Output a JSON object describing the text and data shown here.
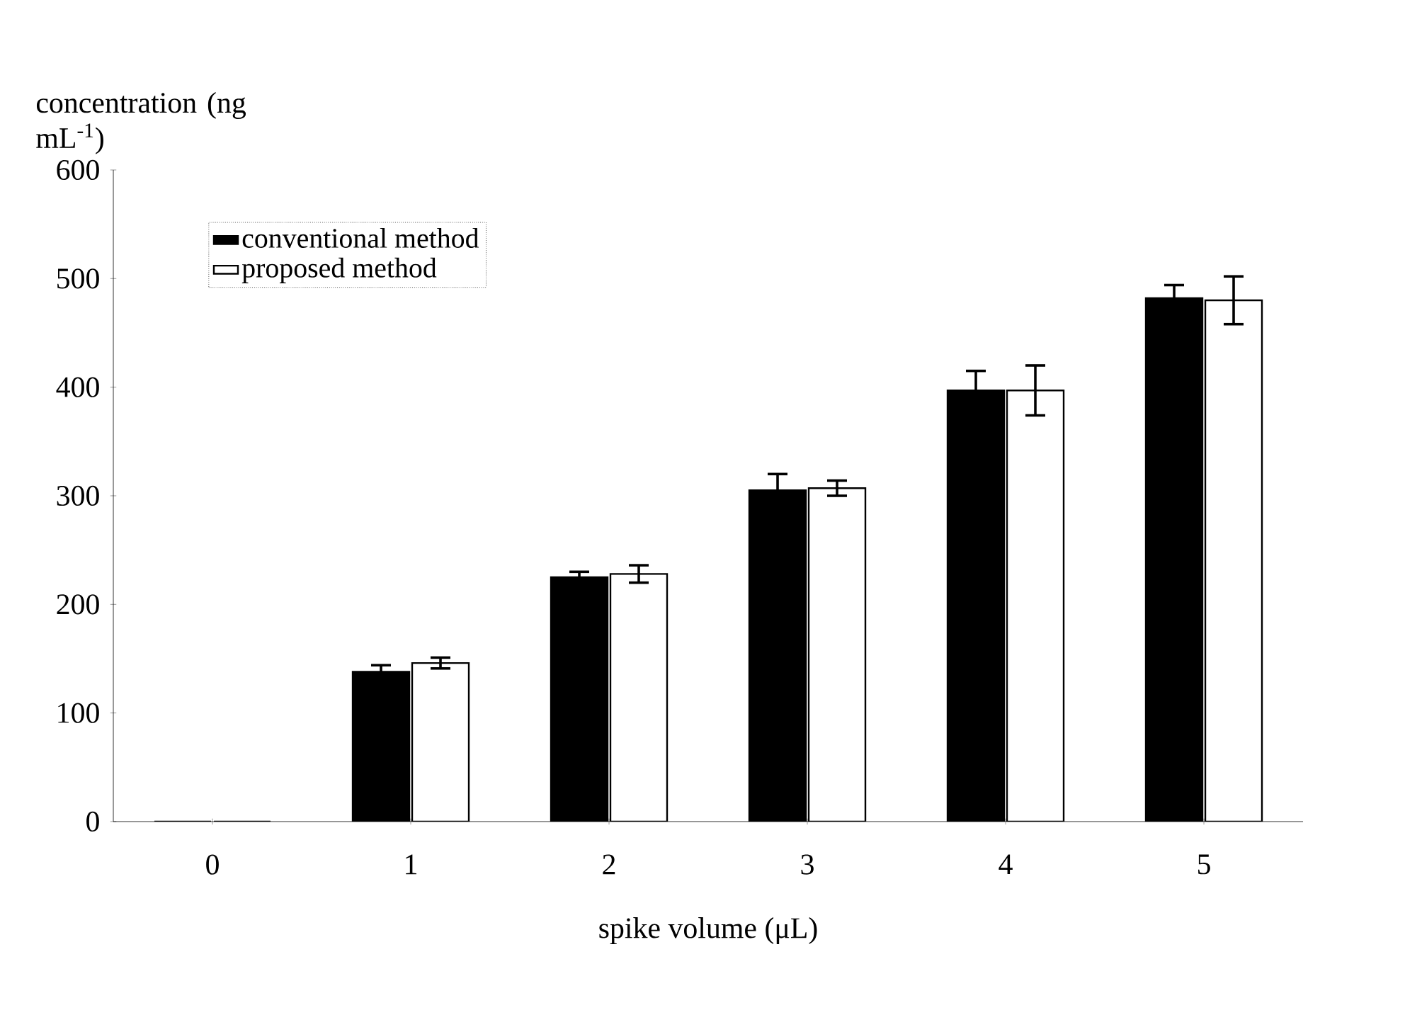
{
  "chart_data": {
    "type": "bar",
    "xlabel": "spike volume (μL)",
    "ylabel": "concentration (ng mL$^{-1}$)",
    "categories": [
      "0",
      "1",
      "2",
      "3",
      "4",
      "5"
    ],
    "series": [
      {
        "name": "conventional method",
        "color": "#000000",
        "values": [
          0,
          138,
          225,
          305,
          397,
          482
        ],
        "errors": [
          null,
          6,
          5,
          15,
          18,
          12
        ]
      },
      {
        "name": "proposed method",
        "color": "#ffffff",
        "values": [
          0,
          146,
          228,
          307,
          397,
          480
        ],
        "errors": [
          null,
          5,
          8,
          7,
          23,
          22
        ]
      }
    ],
    "ylim": [
      0,
      600
    ],
    "yticks": [
      0,
      100,
      200,
      300,
      400,
      500,
      600
    ],
    "legend": "top left",
    "grid": false
  }
}
